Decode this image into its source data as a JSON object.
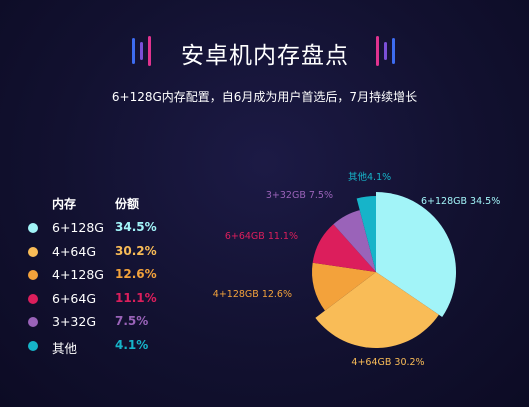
{
  "header": {
    "title": "安卓机内存盘点",
    "subtitle": "6+128G内存配置，自6月成为用户首选后，7月持续增长"
  },
  "legend": {
    "col_name_header": "内存",
    "col_value_header": "份额"
  },
  "colors": {
    "accent_blue": "#3d6cf0",
    "accent_pink": "#e0338f"
  },
  "chart_data": {
    "type": "pie",
    "title": "",
    "slices": [
      {
        "name": "6+128G",
        "value": 34.5,
        "value_label": "34.5%",
        "slice_label": "6+128GB 34.5%",
        "color": "#a2f4f8"
      },
      {
        "name": "4+64G",
        "value": 30.2,
        "value_label": "30.2%",
        "slice_label": "4+64GB 30.2%",
        "color": "#f9bc57"
      },
      {
        "name": "4+128G",
        "value": 12.6,
        "value_label": "12.6%",
        "slice_label": "4+128GB 12.6%",
        "color": "#f3a23b"
      },
      {
        "name": "6+64G",
        "value": 11.1,
        "value_label": "11.1%",
        "slice_label": "6+64GB 11.1%",
        "color": "#dc1e5c"
      },
      {
        "name": "3+32G",
        "value": 7.5,
        "value_label": "7.5%",
        "slice_label": "3+32GB 7.5%",
        "color": "#9a63b9"
      },
      {
        "name": "其他",
        "value": 4.1,
        "value_label": "4.1%",
        "slice_label": "其他4.1%",
        "color": "#16b4c9"
      }
    ]
  }
}
